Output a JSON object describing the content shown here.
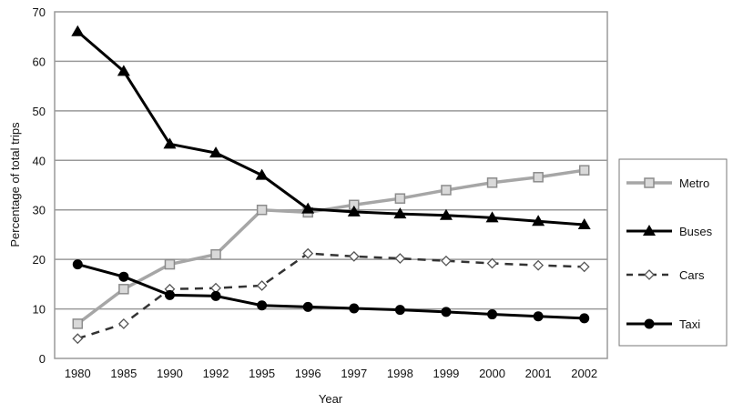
{
  "chart_data": {
    "type": "line",
    "categories": [
      "1980",
      "1985",
      "1990",
      "1992",
      "1995",
      "1996",
      "1997",
      "1998",
      "1999",
      "2000",
      "2001",
      "2002"
    ],
    "xlabel": "Year",
    "ylabel": "Percentage of total trips",
    "ylim": [
      0,
      70
    ],
    "yticks": [
      "0",
      "10",
      "20",
      "30",
      "40",
      "50",
      "60",
      "70"
    ],
    "grid": true,
    "legend_position": "right",
    "series": [
      {
        "name": "Metro",
        "color": "#a6a6a6",
        "marker": "square",
        "dash": "solid",
        "values": [
          7,
          14,
          19,
          21,
          30,
          29.5,
          31,
          32.3,
          34,
          35.5,
          36.6,
          38
        ]
      },
      {
        "name": "Buses",
        "color": "#000000",
        "marker": "triangle",
        "dash": "solid",
        "values": [
          66,
          58,
          43.3,
          41.5,
          37,
          30.2,
          29.6,
          29.2,
          28.9,
          28.4,
          27.7,
          27
        ]
      },
      {
        "name": "Cars",
        "color": "#333333",
        "marker": "diamond",
        "dash": "dashed",
        "values": [
          4,
          7,
          14,
          14.2,
          14.7,
          21.2,
          20.6,
          20.2,
          19.7,
          19.2,
          18.8,
          18.5
        ]
      },
      {
        "name": "Taxi",
        "color": "#000000",
        "marker": "circle",
        "dash": "solid",
        "values": [
          19,
          16.5,
          12.8,
          12.6,
          10.7,
          10.4,
          10.1,
          9.8,
          9.4,
          8.9,
          8.5,
          8.1
        ]
      }
    ]
  }
}
